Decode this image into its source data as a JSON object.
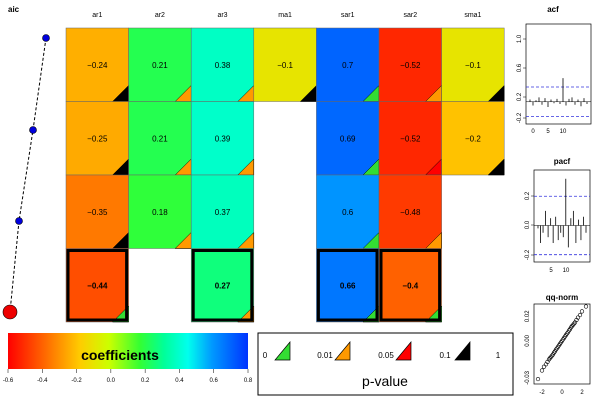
{
  "chart_data": [
    {
      "type": "heatmap",
      "panel": "coefficient-grid",
      "columns": [
        "ar1",
        "ar2",
        "ar3",
        "ma1",
        "sar1",
        "sar2",
        "sma1"
      ],
      "aic_label": "aic",
      "rows": [
        {
          "coefficients": [
            -0.24,
            0.21,
            0.38,
            -0.1,
            0.7,
            -0.52,
            -0.1
          ],
          "pvalue_class": [
            "0.1-1",
            "0.01-0.05",
            "0.01-0.05",
            "0.1-1",
            "0-0.01",
            "0.01-0.05",
            "0.1-1"
          ],
          "bold": [
            false,
            false,
            false,
            false,
            false,
            false,
            false
          ]
        },
        {
          "coefficients": [
            -0.25,
            0.21,
            0.39,
            null,
            0.69,
            -0.52,
            -0.2
          ],
          "pvalue_class": [
            "0.1-1",
            "0.01-0.05",
            "0.01-0.05",
            null,
            "0-0.01",
            "0.05-0.1",
            "0.1-1"
          ],
          "bold": [
            false,
            false,
            false,
            false,
            false,
            false,
            false
          ]
        },
        {
          "coefficients": [
            -0.35,
            0.18,
            0.37,
            null,
            0.6,
            -0.48,
            null
          ],
          "pvalue_class": [
            "0.1-1",
            "0.01-0.05",
            "0.01-0.05",
            null,
            "0-0.01",
            "0.01-0.05",
            null
          ],
          "bold": [
            false,
            false,
            false,
            false,
            false,
            false,
            false
          ]
        },
        {
          "coefficients": [
            -0.44,
            null,
            0.27,
            null,
            0.66,
            -0.4,
            null
          ],
          "pvalue_class": [
            "0-0.01",
            null,
            "0.01-0.05",
            null,
            "0-0.01",
            "0-0.01",
            null
          ],
          "bold": [
            true,
            false,
            true,
            false,
            true,
            true,
            false
          ]
        }
      ],
      "aic_points": [
        0,
        1,
        2,
        3
      ],
      "best_row": 3
    },
    {
      "type": "bar",
      "panel": "acf",
      "title": "acf",
      "x": [
        1,
        2,
        3,
        4,
        5,
        6,
        7,
        8,
        9,
        10,
        11,
        12,
        13,
        14,
        15,
        16,
        17,
        18,
        19,
        20
      ],
      "values": [
        0.03,
        -0.05,
        0.02,
        0.06,
        -0.04,
        0.05,
        -0.07,
        0.03,
        -0.02,
        0.04,
        -0.03,
        0.32,
        -0.05,
        0.04,
        0.06,
        -0.04,
        0.03,
        -0.06,
        0.05,
        -0.03
      ],
      "ylim": [
        -0.3,
        1.05
      ],
      "yticks": [
        "-0.2",
        "0.2",
        "0.6",
        "1.0"
      ],
      "xticks": [
        "0",
        "5",
        "10"
      ],
      "conf_band": [
        -0.2,
        0.2
      ]
    },
    {
      "type": "bar",
      "panel": "pacf",
      "title": "pacf",
      "x": [
        1,
        2,
        3,
        4,
        5,
        6,
        7,
        8,
        9,
        10,
        11,
        12,
        13,
        14,
        15,
        16,
        17,
        18,
        19,
        20
      ],
      "values": [
        -0.02,
        -0.12,
        -0.05,
        0.1,
        -0.08,
        0.05,
        -0.12,
        0.06,
        -0.1,
        -0.05,
        -0.08,
        0.32,
        -0.15,
        0.05,
        0.1,
        -0.12,
        0.04,
        -0.1,
        0.06,
        -0.05
      ],
      "ylim": [
        -0.25,
        0.38
      ],
      "yticks": [
        "-0.2",
        "0.0",
        "0.2"
      ],
      "xticks": [
        "5",
        "10"
      ],
      "conf_band": [
        -0.2,
        0.2
      ]
    },
    {
      "type": "scatter",
      "panel": "qq-norm",
      "title": "qq-norm",
      "xticks": [
        "-2",
        "0",
        "2"
      ],
      "yticks": [
        "-0.03",
        "0.00",
        "0.02"
      ],
      "xlim": [
        -2.8,
        2.8
      ],
      "ylim": [
        -0.035,
        0.03
      ],
      "x": [
        -2.4,
        -2.0,
        -1.8,
        -1.6,
        -1.45,
        -1.3,
        -1.2,
        -1.1,
        -1.0,
        -0.9,
        -0.8,
        -0.7,
        -0.6,
        -0.5,
        -0.4,
        -0.3,
        -0.2,
        -0.1,
        0,
        0.1,
        0.2,
        0.3,
        0.4,
        0.5,
        0.6,
        0.7,
        0.8,
        0.9,
        1.0,
        1.1,
        1.2,
        1.3,
        1.45,
        1.6,
        1.8,
        2.0,
        2.4
      ],
      "y": [
        -0.031,
        -0.024,
        -0.021,
        -0.019,
        -0.017,
        -0.015,
        -0.014,
        -0.013,
        -0.012,
        -0.011,
        -0.0095,
        -0.0085,
        -0.007,
        -0.006,
        -0.0048,
        -0.0036,
        -0.0024,
        -0.0012,
        0,
        0.0012,
        0.0024,
        0.0036,
        0.0048,
        0.006,
        0.007,
        0.0085,
        0.0095,
        0.011,
        0.012,
        0.013,
        0.014,
        0.015,
        0.017,
        0.019,
        0.021,
        0.024,
        0.028
      ]
    }
  ],
  "legend": {
    "colorbar_title": "coefficients",
    "colorbar_ticks": [
      "-0.6",
      "-0.4",
      "-0.2",
      "0.0",
      "0.2",
      "0.4",
      "0.6",
      "0.8"
    ],
    "colorbar_range": [
      -0.6,
      0.8
    ],
    "pvalue_title": "p-value",
    "pvalue_breaks": [
      "0",
      "0.01",
      "0.05",
      "0.1",
      "1"
    ],
    "pvalue_colors": [
      "#33dd33",
      "#ff9900",
      "#ff0000",
      "#000000"
    ]
  }
}
